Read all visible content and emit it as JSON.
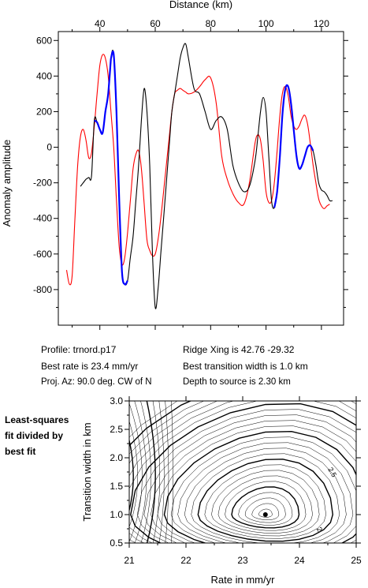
{
  "chart_data": [
    {
      "type": "line",
      "xlabel": "Distance (km)",
      "ylabel": "Anomaly amplitude",
      "xlim": [
        25,
        128
      ],
      "ylim": [
        -1000,
        650
      ],
      "x_ticks": [
        40,
        60,
        80,
        100,
        120
      ],
      "y_ticks": [
        600,
        400,
        200,
        0,
        -200,
        -400,
        -600,
        -800
      ],
      "x_axis_position": "top",
      "grid": false,
      "series": [
        {
          "color": "#ff0000",
          "x": [
            28,
            29,
            30,
            31,
            32,
            33,
            34,
            35,
            36,
            37,
            38,
            39,
            40,
            41,
            42,
            43,
            44,
            45,
            46,
            47,
            48,
            49,
            50,
            51,
            52,
            53,
            54,
            55,
            56,
            57,
            58,
            59,
            60,
            61,
            62,
            63,
            64,
            65,
            66,
            67,
            68,
            69,
            70,
            71,
            72,
            74,
            76,
            78,
            80,
            82,
            84,
            86,
            88,
            90,
            92,
            94,
            96,
            97,
            98,
            99,
            100,
            101,
            102,
            103,
            104,
            105,
            106,
            107,
            108,
            109,
            110,
            111,
            112,
            113,
            114,
            115,
            116,
            117,
            118,
            119,
            120,
            121,
            122,
            123
          ],
          "y": [
            -690,
            -770,
            -720,
            -400,
            -100,
            60,
            100,
            40,
            -60,
            -30,
            120,
            300,
            460,
            520,
            500,
            400,
            200,
            0,
            -300,
            -560,
            -660,
            -620,
            -480,
            -300,
            -120,
            -40,
            -20,
            -120,
            -320,
            -520,
            -580,
            -610,
            -600,
            -520,
            -400,
            -250,
            -100,
            50,
            200,
            300,
            320,
            330,
            320,
            310,
            300,
            310,
            340,
            380,
            390,
            250,
            -50,
            -180,
            -260,
            -310,
            -320,
            -200,
            20,
            70,
            40,
            -80,
            -250,
            -310,
            -300,
            -200,
            -20,
            180,
            310,
            340,
            290,
            180,
            120,
            100,
            120,
            160,
            180,
            130,
            20,
            -100,
            -200,
            -290,
            -330,
            -345,
            -330,
            -320
          ]
        },
        {
          "color": "#000000",
          "x": [
            33,
            34,
            35,
            36,
            37,
            38,
            39,
            40,
            41,
            42,
            43,
            44,
            45,
            46,
            47,
            48,
            49,
            50,
            51,
            52,
            53,
            54,
            55,
            56,
            57,
            58,
            59,
            60,
            61,
            62,
            63,
            64,
            65,
            66,
            67,
            68,
            69,
            70,
            71,
            72,
            74,
            76,
            78,
            80,
            82,
            84,
            86,
            88,
            90,
            92,
            94,
            96,
            97,
            98,
            99,
            100,
            101,
            102,
            103,
            104,
            105,
            106,
            107,
            108,
            109,
            110,
            111,
            112,
            113,
            114,
            115,
            116,
            117,
            118,
            119,
            120,
            121,
            122,
            123,
            124
          ],
          "y": [
            -220,
            -200,
            -180,
            -170,
            -160,
            150,
            140,
            100,
            80,
            200,
            300,
            500,
            520,
            200,
            -300,
            -700,
            -770,
            -750,
            -620,
            -500,
            -300,
            -100,
            150,
            330,
            200,
            -100,
            -600,
            -900,
            -800,
            -600,
            -400,
            -200,
            0,
            200,
            300,
            400,
            500,
            560,
            580,
            500,
            330,
            300,
            200,
            100,
            150,
            170,
            100,
            -100,
            -200,
            -250,
            -220,
            -80,
            50,
            200,
            280,
            200,
            -50,
            -300,
            -340,
            -250,
            -50,
            200,
            330,
            340,
            250,
            100,
            -50,
            -120,
            -100,
            -50,
            0,
            10,
            -20,
            -100,
            -200,
            -240,
            -250,
            -270,
            -300,
            -300
          ]
        },
        {
          "color": "#0000ff",
          "x": [
            38,
            39,
            40,
            41,
            42,
            43,
            44
          ],
          "y": [
            150,
            140,
            100,
            80,
            200,
            300,
            500
          ]
        },
        {
          "color": "#0000ff",
          "x": [
            44,
            45,
            46,
            47,
            48,
            49,
            50
          ],
          "y": [
            500,
            520,
            200,
            -300,
            -700,
            -770,
            -750
          ]
        },
        {
          "color": "#0000ff",
          "x": [
            103,
            104,
            105,
            106,
            107,
            108,
            109,
            110,
            111,
            112,
            113,
            114,
            115,
            116,
            117
          ],
          "y": [
            -340,
            -250,
            -50,
            200,
            330,
            340,
            250,
            100,
            -50,
            -120,
            -100,
            -50,
            0,
            10,
            -20
          ]
        }
      ]
    },
    {
      "type": "contour",
      "xlabel": "Rate in mm/yr",
      "ylabel": "Transition width in km",
      "xlim": [
        21,
        25
      ],
      "ylim": [
        0.5,
        3.0
      ],
      "x_ticks": [
        21,
        22,
        23,
        24,
        25
      ],
      "y_ticks": [
        0.5,
        1.0,
        1.5,
        2.0,
        2.5,
        3.0
      ],
      "contour_labels": [
        {
          "text": "2.5",
          "x": 24.5,
          "y": 1.8
        },
        {
          "text": "2",
          "x": 24.3,
          "y": 0.75
        }
      ],
      "best_fit": {
        "x": 23.4,
        "y": 1.0
      }
    }
  ],
  "info": {
    "profile": "Profile: trnord.p17",
    "best_rate": "Best rate is 23.4 mm/yr",
    "proj_az": "Proj. Az: 90.0 deg. CW of N",
    "ridge_xing": "Ridge Xing is 42.76 -29.32",
    "transition": "Best transition width is 1.0 km",
    "depth": "Depth to source is   2.30 km"
  },
  "side_note": {
    "line1": "Least-squares",
    "line2": "fit divided by",
    "line3": "best fit"
  }
}
